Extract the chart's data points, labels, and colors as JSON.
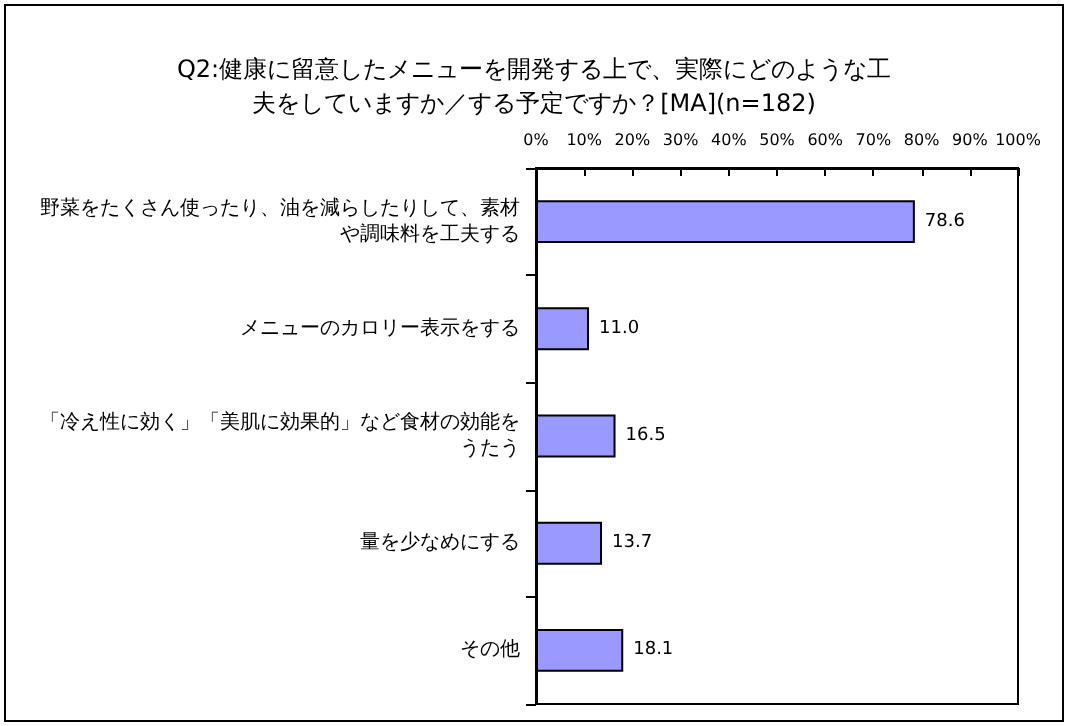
{
  "chart_data": {
    "type": "bar",
    "orientation": "horizontal",
    "title": "Q2:健康に留意したメニューを開発する上で、実際にどのような工夫をしていますか／する予定ですか？[MA](n=182)",
    "categories": [
      "野菜をたくさん使ったり、油を減らしたりして、素材や調味料を工夫する",
      "メニューのカロリー表示をする",
      "「冷え性に効く」「美肌に効果的」など食材の効能をうたう",
      "量を少なめにする",
      "その他"
    ],
    "values": [
      78.6,
      11.0,
      16.5,
      13.7,
      18.1
    ],
    "value_labels": [
      "78.6",
      "11.0",
      "16.5",
      "13.7",
      "18.1"
    ],
    "color": "#9999ff",
    "grid": false,
    "xlim": [
      0,
      100
    ],
    "xticks": [
      {
        "value": 0,
        "label": "0%"
      },
      {
        "value": 10,
        "label": "10%"
      },
      {
        "value": 20,
        "label": "20%"
      },
      {
        "value": 30,
        "label": "30%"
      },
      {
        "value": 40,
        "label": "40%"
      },
      {
        "value": 50,
        "label": "50%"
      },
      {
        "value": 60,
        "label": "60%"
      },
      {
        "value": 70,
        "label": "70%"
      },
      {
        "value": 80,
        "label": "80%"
      },
      {
        "value": 90,
        "label": "90%"
      },
      {
        "value": 100,
        "label": "100%"
      }
    ]
  }
}
